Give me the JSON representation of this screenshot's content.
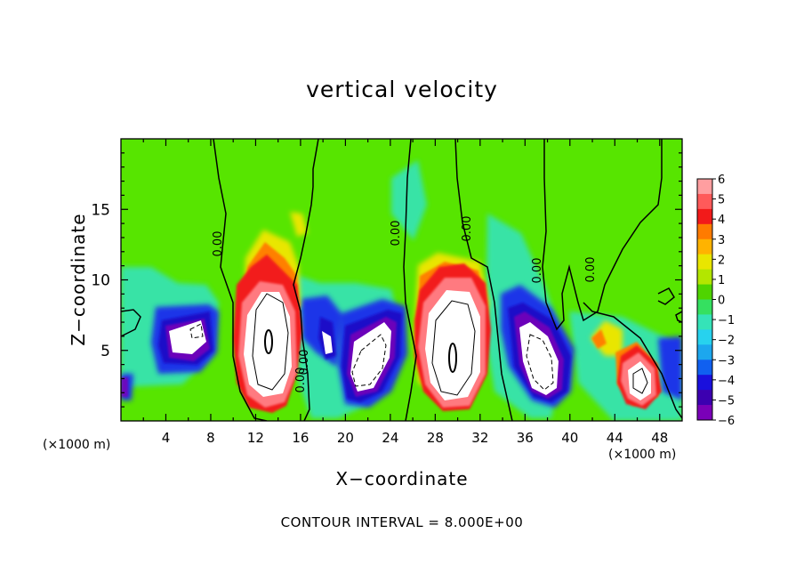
{
  "chart_data": {
    "type": "heatmap",
    "title": "vertical velocity",
    "xlabel": "X−coordinate",
    "ylabel": "Z−coordinate",
    "x_unit_left": "(×1000 m)",
    "x_unit_right": "(×1000 m)",
    "footer": "CONTOUR INTERVAL = 8.000E+00",
    "xlim": [
      0,
      50
    ],
    "ylim": [
      0,
      20
    ],
    "x_ticks": [
      4,
      8,
      12,
      16,
      20,
      24,
      28,
      32,
      36,
      40,
      44,
      48
    ],
    "y_ticks": [
      5,
      10,
      15
    ],
    "colorbar": {
      "ticks": [
        "6",
        "5",
        "4",
        "3",
        "2",
        "1",
        "0",
        "−1",
        "−2",
        "−3",
        "−4",
        "−5",
        "−6"
      ],
      "colors": [
        "#ff9ea0",
        "#ff5a5a",
        "#f21a1a",
        "#ff7b00",
        "#ffb300",
        "#e9e600",
        "#b3e600",
        "#4fd400",
        "#35e060",
        "#35e3b8",
        "#27d2ee",
        "#1ca7ee",
        "#1060f0",
        "#1a10dd",
        "#3c00b0",
        "#7a00b8"
      ]
    },
    "contour_labels": [
      "0.00",
      "0.00",
      "0.00",
      "0.00",
      "0.00",
      "0.00",
      "0.00"
    ],
    "background_color": "#57e500"
  }
}
